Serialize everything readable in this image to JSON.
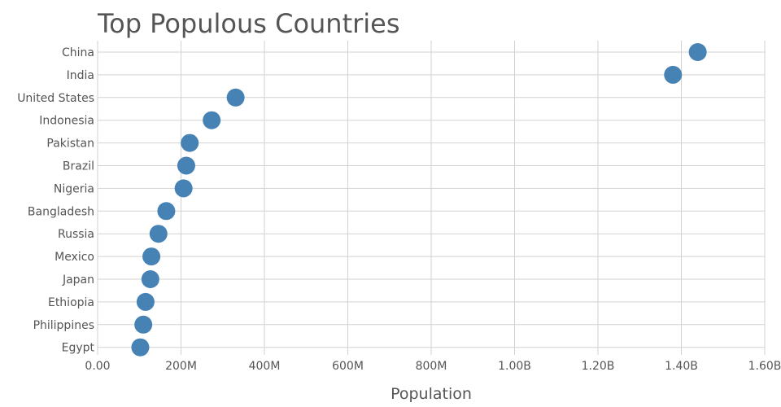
{
  "chart_data": {
    "type": "scatter",
    "title": "Top Populous Countries",
    "xlabel": "Population",
    "ylabel": "",
    "xlim": [
      0,
      1600000000
    ],
    "grid": true,
    "marker_color": "#4682b4",
    "categories": [
      "China",
      "India",
      "United States",
      "Indonesia",
      "Pakistan",
      "Brazil",
      "Nigeria",
      "Bangladesh",
      "Russia",
      "Mexico",
      "Japan",
      "Ethiopia",
      "Philippines",
      "Egypt"
    ],
    "values": [
      1439323776,
      1380004385,
      331002651,
      273523615,
      220892340,
      212559417,
      206139589,
      164689383,
      145934462,
      128932753,
      126476461,
      114963588,
      109581078,
      102334404
    ],
    "x_ticks": [
      {
        "value": 0,
        "label": "0.00"
      },
      {
        "value": 200000000,
        "label": "200M"
      },
      {
        "value": 400000000,
        "label": "400M"
      },
      {
        "value": 600000000,
        "label": "600M"
      },
      {
        "value": 800000000,
        "label": "800M"
      },
      {
        "value": 1000000000,
        "label": "1.00B"
      },
      {
        "value": 1200000000,
        "label": "1.20B"
      },
      {
        "value": 1400000000,
        "label": "1.40B"
      },
      {
        "value": 1600000000,
        "label": "1.60B"
      }
    ]
  }
}
